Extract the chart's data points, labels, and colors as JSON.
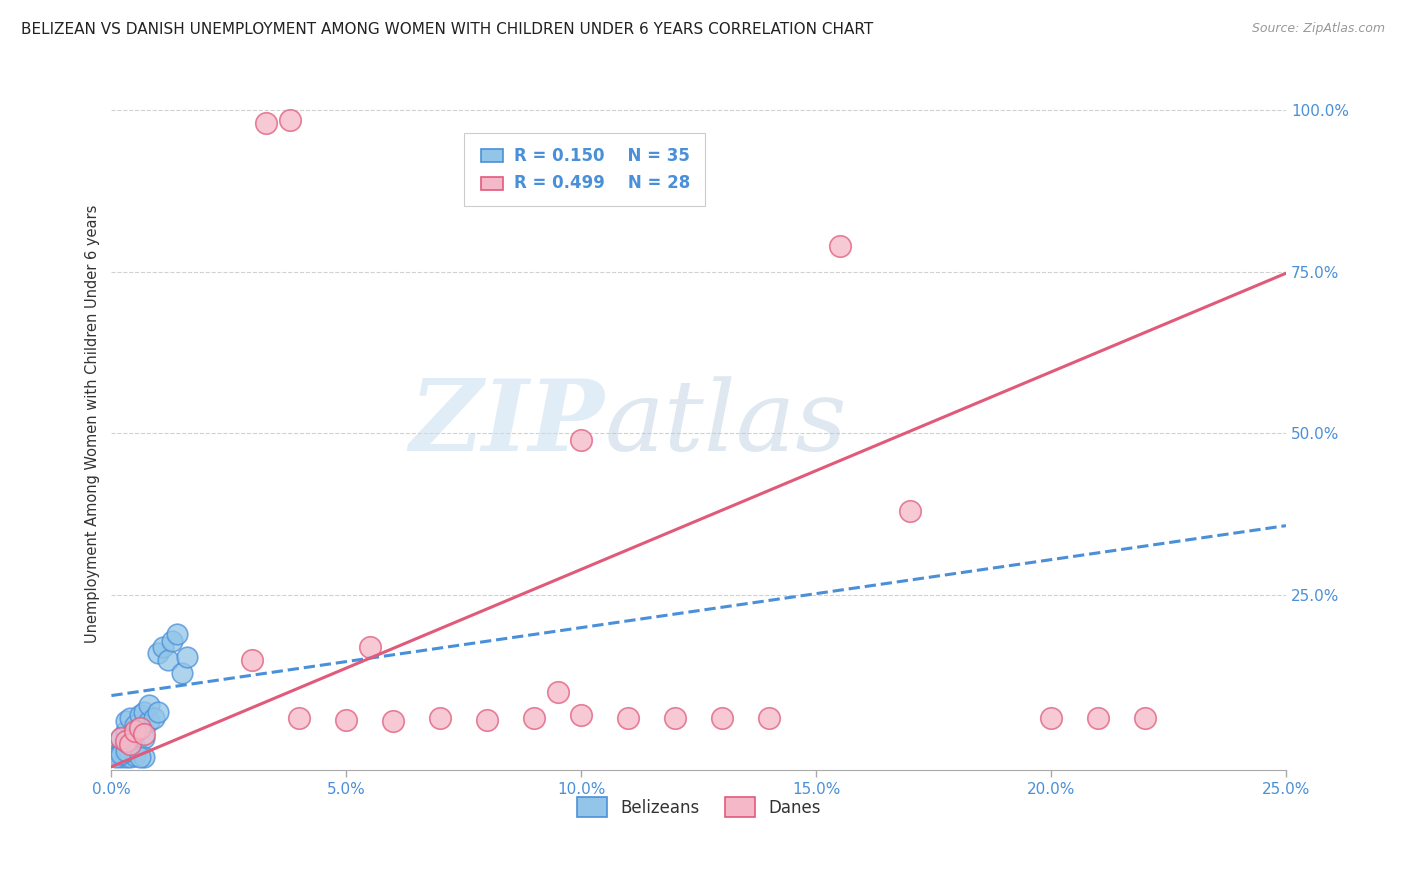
{
  "title": "BELIZEAN VS DANISH UNEMPLOYMENT AMONG WOMEN WITH CHILDREN UNDER 6 YEARS CORRELATION CHART",
  "source": "Source: ZipAtlas.com",
  "ylabel": "Unemployment Among Women with Children Under 6 years",
  "ytick_labels": [
    "100.0%",
    "75.0%",
    "50.0%",
    "25.0%"
  ],
  "ytick_values": [
    1.0,
    0.75,
    0.5,
    0.25
  ],
  "xlim": [
    0.0,
    0.25
  ],
  "ylim": [
    -0.02,
    1.05
  ],
  "legend_r_blue": "R = 0.150",
  "legend_n_blue": "N = 35",
  "legend_r_pink": "R = 0.499",
  "legend_n_pink": "N = 28",
  "legend_label_blue": "Belizeans",
  "legend_label_pink": "Danes",
  "watermark_zip": "ZIP",
  "watermark_atlas": "atlas",
  "blue_color": "#92c5e8",
  "pink_color": "#f4b8c8",
  "blue_line_color": "#4a90d9",
  "pink_line_color": "#e05a7a",
  "blue_scatter": [
    [
      0.001,
      0.005
    ],
    [
      0.002,
      0.01
    ],
    [
      0.002,
      0.03
    ],
    [
      0.003,
      0.02
    ],
    [
      0.003,
      0.04
    ],
    [
      0.003,
      0.055
    ],
    [
      0.004,
      0.025
    ],
    [
      0.004,
      0.06
    ],
    [
      0.005,
      0.015
    ],
    [
      0.005,
      0.035
    ],
    [
      0.005,
      0.05
    ],
    [
      0.006,
      0.045
    ],
    [
      0.006,
      0.065
    ],
    [
      0.007,
      0.03
    ],
    [
      0.007,
      0.07
    ],
    [
      0.008,
      0.055
    ],
    [
      0.008,
      0.08
    ],
    [
      0.009,
      0.06
    ],
    [
      0.01,
      0.07
    ],
    [
      0.01,
      0.16
    ],
    [
      0.011,
      0.17
    ],
    [
      0.012,
      0.15
    ],
    [
      0.013,
      0.18
    ],
    [
      0.014,
      0.19
    ],
    [
      0.015,
      0.13
    ],
    [
      0.016,
      0.155
    ],
    [
      0.002,
      0.0
    ],
    [
      0.003,
      0.0
    ],
    [
      0.004,
      0.0
    ],
    [
      0.005,
      0.002
    ],
    [
      0.001,
      0.0
    ],
    [
      0.002,
      0.005
    ],
    [
      0.003,
      0.01
    ],
    [
      0.007,
      0.0
    ],
    [
      0.006,
      0.0
    ]
  ],
  "pink_scatter": [
    [
      0.033,
      0.98
    ],
    [
      0.038,
      0.985
    ],
    [
      0.002,
      0.03
    ],
    [
      0.003,
      0.025
    ],
    [
      0.004,
      0.02
    ],
    [
      0.005,
      0.04
    ],
    [
      0.006,
      0.045
    ],
    [
      0.007,
      0.035
    ],
    [
      0.04,
      0.06
    ],
    [
      0.05,
      0.058
    ],
    [
      0.06,
      0.055
    ],
    [
      0.07,
      0.06
    ],
    [
      0.08,
      0.058
    ],
    [
      0.09,
      0.06
    ],
    [
      0.1,
      0.065
    ],
    [
      0.11,
      0.06
    ],
    [
      0.12,
      0.06
    ],
    [
      0.13,
      0.06
    ],
    [
      0.14,
      0.06
    ],
    [
      0.03,
      0.15
    ],
    [
      0.055,
      0.17
    ],
    [
      0.095,
      0.1
    ],
    [
      0.1,
      0.49
    ],
    [
      0.155,
      0.79
    ],
    [
      0.2,
      0.06
    ],
    [
      0.21,
      0.06
    ],
    [
      0.17,
      0.38
    ],
    [
      0.22,
      0.06
    ]
  ],
  "blue_line_slope": 1.05,
  "blue_line_intercept": 0.095,
  "pink_line_slope": 3.05,
  "pink_line_intercept": -0.015
}
